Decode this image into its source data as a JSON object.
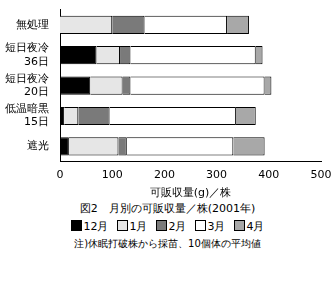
{
  "chart_data": {
    "type": "bar",
    "orientation": "horizontal",
    "stacked": true,
    "title": "図2　月別の可販収量／株(2001年)",
    "x_label": "可販収量(g)／株",
    "note": "注)休眠打破株から採苗、10個体の平均値",
    "categories": [
      "無処理",
      "短日夜冷\n36日",
      "短日夜冷\n20日",
      "低温暗黒\n15日",
      "遮光"
    ],
    "series": [
      {
        "name": "12月",
        "color": "#000000",
        "values": [
          0,
          70,
          58,
          8,
          17
        ]
      },
      {
        "name": "1月",
        "color": "#e6e6e6",
        "values": [
          100,
          45,
          62,
          27,
          95
        ]
      },
      {
        "name": "2月",
        "color": "#7a7a7a",
        "values": [
          62,
          20,
          15,
          60,
          16
        ]
      },
      {
        "name": "3月",
        "color": "#ffffff",
        "values": [
          158,
          240,
          257,
          242,
          204
        ]
      },
      {
        "name": "4月",
        "color": "#a8a8a8",
        "values": [
          42,
          13,
          13,
          38,
          60
        ]
      }
    ],
    "xlim": [
      0,
      500
    ],
    "xticks": [
      0,
      100,
      200,
      300,
      400,
      500
    ],
    "grid": false,
    "legend": "bottom"
  }
}
